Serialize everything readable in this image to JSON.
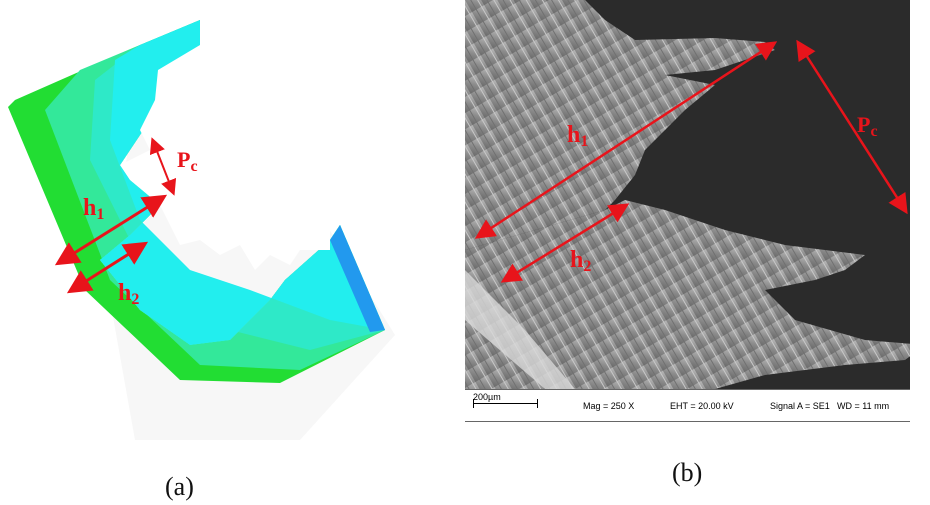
{
  "panel_a": {
    "caption": "(a)",
    "label_h1_main": "h",
    "label_h1_sub": "1",
    "label_h2_main": "h",
    "label_h2_sub": "2",
    "label_pc_main": "P",
    "label_pc_sub": "c",
    "colors": {
      "outer": "#22dd33",
      "mid": "#33eeaa",
      "inner": "#22eeee",
      "edge": "#2299ee",
      "arrow": "#e8141b"
    }
  },
  "panel_b": {
    "caption": "(b)",
    "label_h1_main": "h",
    "label_h1_sub": "1",
    "label_h2_main": "h",
    "label_h2_sub": "2",
    "label_pc_main": "P",
    "label_pc_sub": "c",
    "scalebar": {
      "length": "200µm",
      "mag": "Mag =   250 X",
      "eht": "EHT = 20.00 kV",
      "signal": "Signal A = SE1",
      "wd": "WD =  11 mm"
    }
  }
}
